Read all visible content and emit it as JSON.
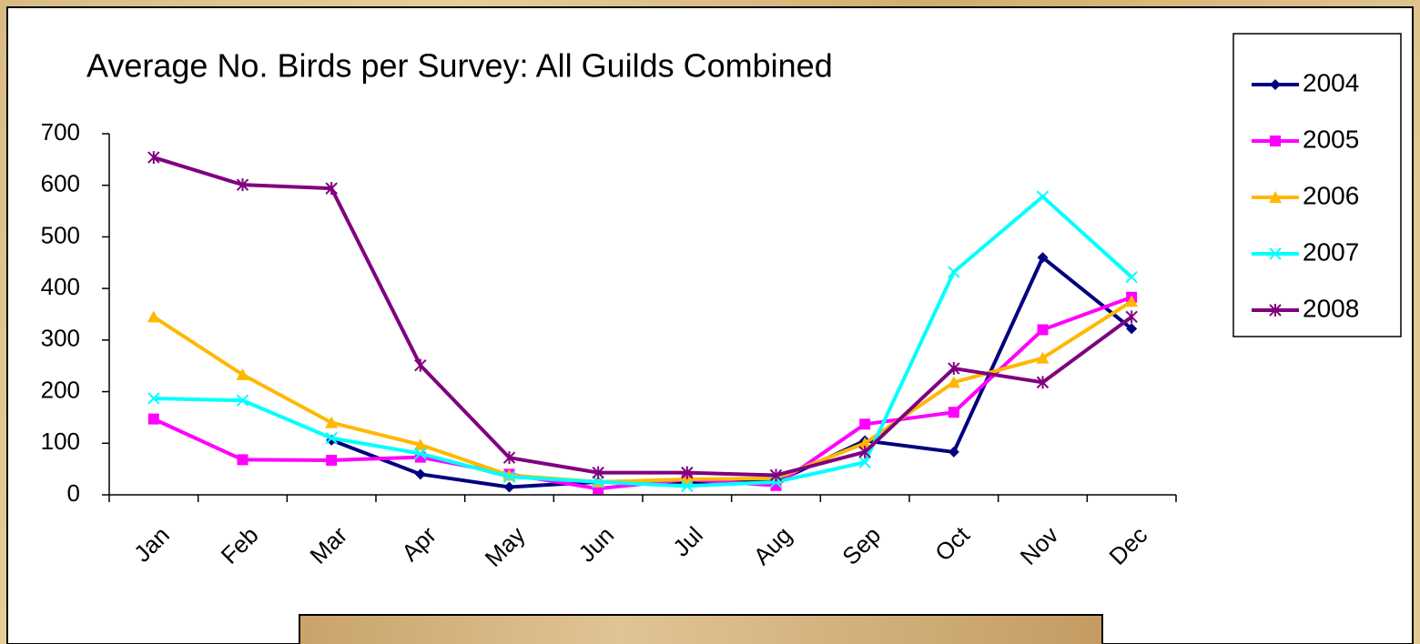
{
  "chart_data": {
    "type": "line",
    "title": "Average No. Birds per Survey: All Guilds Combined",
    "categories": [
      "Jan",
      "Feb",
      "Mar",
      "Apr",
      "May",
      "Jun",
      "Jul",
      "Aug",
      "Sep",
      "Oct",
      "Nov",
      "Dec"
    ],
    "series": [
      {
        "name": "2004",
        "color": "#000080",
        "marker": "diamond",
        "values": [
          null,
          null,
          106,
          40,
          15,
          25,
          25,
          25,
          105,
          83,
          460,
          322
        ]
      },
      {
        "name": "2005",
        "color": "#ff00ff",
        "marker": "square",
        "values": [
          147,
          68,
          67,
          73,
          40,
          12,
          30,
          18,
          137,
          160,
          320,
          383
        ]
      },
      {
        "name": "2006",
        "color": "#ffb800",
        "marker": "triangle",
        "values": [
          345,
          233,
          140,
          97,
          38,
          25,
          30,
          32,
          100,
          218,
          265,
          375
        ]
      },
      {
        "name": "2007",
        "color": "#00ffff",
        "marker": "x",
        "values": [
          187,
          183,
          110,
          80,
          35,
          25,
          17,
          25,
          63,
          432,
          578,
          422
        ]
      },
      {
        "name": "2008",
        "color": "#800080",
        "marker": "star",
        "values": [
          654,
          601,
          594,
          251,
          72,
          43,
          43,
          38,
          83,
          245,
          218,
          345
        ]
      }
    ],
    "ylim": [
      0,
      700
    ],
    "yticks": [
      0,
      100,
      200,
      300,
      400,
      500,
      600,
      700
    ],
    "grid": false,
    "legend": "right"
  }
}
